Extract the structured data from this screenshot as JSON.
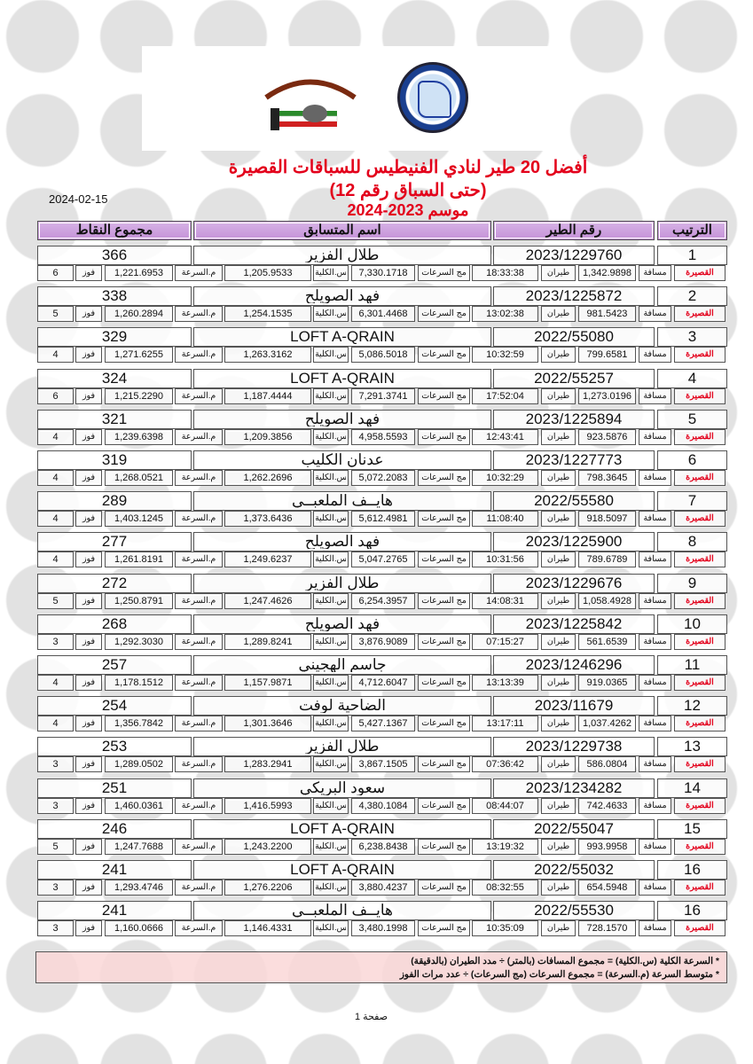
{
  "title_line1": "أفضل 20 طير لنادي الفنيطيس للسباقات القصيرة",
  "title_line2": "(حتى السباق رقم 12)",
  "title_line3": "موسم 2023-2024",
  "date": "2024-02-15",
  "headers": {
    "rank": "الترتيب",
    "ring": "رقم الطير",
    "name": "اسم المتسابق",
    "points": "مجموع النقاط"
  },
  "labels": {
    "category": "القصيرة",
    "distance": "مسافة",
    "flight": "طيران",
    "sum_speeds": "مج السرعات",
    "total_speed": "س.الكلية",
    "avg_speed": "م.السرعة",
    "wins": "فوز"
  },
  "rows": [
    {
      "rank": "1",
      "ring": "2023/1229760",
      "name": "طلال الفزير",
      "points": "366",
      "distance": "1,342.9898",
      "time": "18:33:38",
      "sum": "7,330.1718",
      "total": "1,205.9533",
      "avg": "1,221.6953",
      "wins": "6"
    },
    {
      "rank": "2",
      "ring": "2023/1225872",
      "name": "فهد الصويلح",
      "points": "338",
      "distance": "981.5423",
      "time": "13:02:38",
      "sum": "6,301.4468",
      "total": "1,254.1535",
      "avg": "1,260.2894",
      "wins": "5"
    },
    {
      "rank": "3",
      "ring": "2022/55080",
      "name": "LOFT A-QRAIN",
      "points": "329",
      "distance": "799.6581",
      "time": "10:32:59",
      "sum": "5,086.5018",
      "total": "1,263.3162",
      "avg": "1,271.6255",
      "wins": "4"
    },
    {
      "rank": "4",
      "ring": "2022/55257",
      "name": "LOFT A-QRAIN",
      "points": "324",
      "distance": "1,273.0196",
      "time": "17:52:04",
      "sum": "7,291.3741",
      "total": "1,187.4444",
      "avg": "1,215.2290",
      "wins": "6"
    },
    {
      "rank": "5",
      "ring": "2023/1225894",
      "name": "فهد الصويلح",
      "points": "321",
      "distance": "923.5876",
      "time": "12:43:41",
      "sum": "4,958.5593",
      "total": "1,209.3856",
      "avg": "1,239.6398",
      "wins": "4"
    },
    {
      "rank": "6",
      "ring": "2023/1227773",
      "name": "عدنان الكليب",
      "points": "319",
      "distance": "798.3645",
      "time": "10:32:29",
      "sum": "5,072.2083",
      "total": "1,262.2696",
      "avg": "1,268.0521",
      "wins": "4"
    },
    {
      "rank": "7",
      "ring": "2022/55580",
      "name": "هايــف الملعبــي",
      "points": "289",
      "distance": "918.5097",
      "time": "11:08:40",
      "sum": "5,612.4981",
      "total": "1,373.6436",
      "avg": "1,403.1245",
      "wins": "4"
    },
    {
      "rank": "8",
      "ring": "2023/1225900",
      "name": "فهد الصويلح",
      "points": "277",
      "distance": "789.6789",
      "time": "10:31:56",
      "sum": "5,047.2765",
      "total": "1,249.6237",
      "avg": "1,261.8191",
      "wins": "4"
    },
    {
      "rank": "9",
      "ring": "2023/1229676",
      "name": "طلال الفزير",
      "points": "272",
      "distance": "1,058.4928",
      "time": "14:08:31",
      "sum": "6,254.3957",
      "total": "1,247.4626",
      "avg": "1,250.8791",
      "wins": "5"
    },
    {
      "rank": "10",
      "ring": "2023/1225842",
      "name": "فهد الصويلح",
      "points": "268",
      "distance": "561.6539",
      "time": "07:15:27",
      "sum": "3,876.9089",
      "total": "1,289.8241",
      "avg": "1,292.3030",
      "wins": "3"
    },
    {
      "rank": "11",
      "ring": "2023/1246296",
      "name": "جاسم الهجيني",
      "points": "257",
      "distance": "919.0365",
      "time": "13:13:39",
      "sum": "4,712.6047",
      "total": "1,157.9871",
      "avg": "1,178.1512",
      "wins": "4"
    },
    {
      "rank": "12",
      "ring": "2023/11679",
      "name": "الضاحية لوفت",
      "points": "254",
      "distance": "1,037.4262",
      "time": "13:17:11",
      "sum": "5,427.1367",
      "total": "1,301.3646",
      "avg": "1,356.7842",
      "wins": "4"
    },
    {
      "rank": "13",
      "ring": "2023/1229738",
      "name": "طلال الفزير",
      "points": "253",
      "distance": "586.0804",
      "time": "07:36:42",
      "sum": "3,867.1505",
      "total": "1,283.2941",
      "avg": "1,289.0502",
      "wins": "3"
    },
    {
      "rank": "14",
      "ring": "2023/1234282",
      "name": "سعود البريكي",
      "points": "251",
      "distance": "742.4633",
      "time": "08:44:07",
      "sum": "4,380.1084",
      "total": "1,416.5993",
      "avg": "1,460.0361",
      "wins": "3"
    },
    {
      "rank": "15",
      "ring": "2022/55047",
      "name": "LOFT A-QRAIN",
      "points": "246",
      "distance": "993.9958",
      "time": "13:19:32",
      "sum": "6,238.8438",
      "total": "1,243.2200",
      "avg": "1,247.7688",
      "wins": "5"
    },
    {
      "rank": "16",
      "ring": "2022/55032",
      "name": "LOFT A-QRAIN",
      "points": "241",
      "distance": "654.5948",
      "time": "08:32:55",
      "sum": "3,880.4237",
      "total": "1,276.2206",
      "avg": "1,293.4746",
      "wins": "3"
    },
    {
      "rank": "16",
      "ring": "2022/55530",
      "name": "هايــف الملعبــي",
      "points": "241",
      "distance": "728.1570",
      "time": "10:35:09",
      "sum": "3,480.1998",
      "total": "1,146.4331",
      "avg": "1,160.0666",
      "wins": "3"
    }
  ],
  "footer": {
    "line1": "* السرعة الكلية (س.الكلية) = مجموع المسافات (بالمتر) ÷ مدد الطيران (بالدقيقة)",
    "line2": "* متوسط السرعة (م.السرعة) = مجموع السرعات (مج السرعات) ÷ عدد مرات الفوز"
  },
  "page": "صفحة 1",
  "logos": {
    "federation": "Kuwait Federation For Racing Pigeons",
    "club": "النادي الكويتي لسباق الحمام الزاجل"
  }
}
